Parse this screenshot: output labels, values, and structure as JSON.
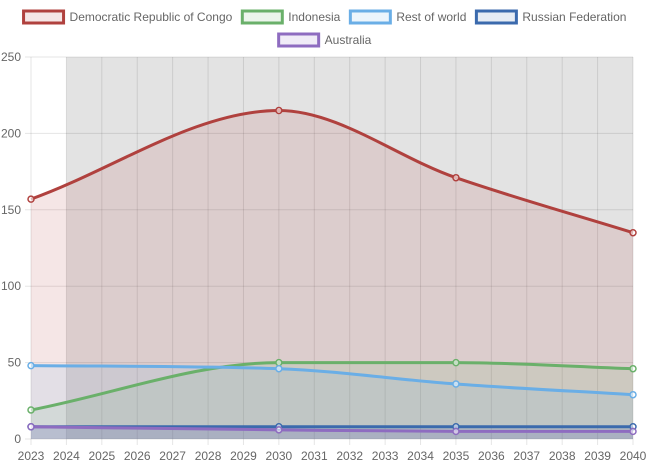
{
  "chart_data": {
    "type": "area",
    "title": "",
    "xlabel": "",
    "ylabel": "",
    "x": [
      "2023",
      "2024",
      "2025",
      "2026",
      "2027",
      "2028",
      "2029",
      "2030",
      "2031",
      "2032",
      "2033",
      "2034",
      "2035",
      "2036",
      "2037",
      "2038",
      "2039",
      "2040"
    ],
    "ylim": [
      0,
      250
    ],
    "yticks": [
      0,
      50,
      100,
      150,
      200,
      250
    ],
    "grid": true,
    "legend": "top",
    "shaded_range": [
      "2024",
      "2040"
    ],
    "series": [
      {
        "name": "Democratic Republic of Congo",
        "color": "#b0413e",
        "fill": "rgba(176,65,62,0.13)",
        "points": [
          [
            "2023",
            157
          ],
          [
            "2030",
            215
          ],
          [
            "2035",
            171
          ],
          [
            "2040",
            135
          ]
        ]
      },
      {
        "name": "Indonesia",
        "color": "#6ab06a",
        "fill": "rgba(106,176,106,0.13)",
        "points": [
          [
            "2023",
            19
          ],
          [
            "2030",
            50
          ],
          [
            "2035",
            50
          ],
          [
            "2040",
            46
          ]
        ]
      },
      {
        "name": "Rest of world",
        "color": "#6aaee6",
        "fill": "rgba(106,174,230,0.13)",
        "points": [
          [
            "2023",
            48
          ],
          [
            "2030",
            46
          ],
          [
            "2035",
            36
          ],
          [
            "2040",
            29
          ]
        ]
      },
      {
        "name": "Russian Federation",
        "color": "#3b6aad",
        "fill": "rgba(59,106,173,0.13)",
        "points": [
          [
            "2023",
            8
          ],
          [
            "2030",
            8
          ],
          [
            "2035",
            8
          ],
          [
            "2040",
            8
          ]
        ]
      },
      {
        "name": "Australia",
        "color": "#8e6cc0",
        "fill": "rgba(142,108,192,0.13)",
        "points": [
          [
            "2023",
            8
          ],
          [
            "2030",
            6
          ],
          [
            "2035",
            5
          ],
          [
            "2040",
            5
          ]
        ]
      }
    ]
  }
}
